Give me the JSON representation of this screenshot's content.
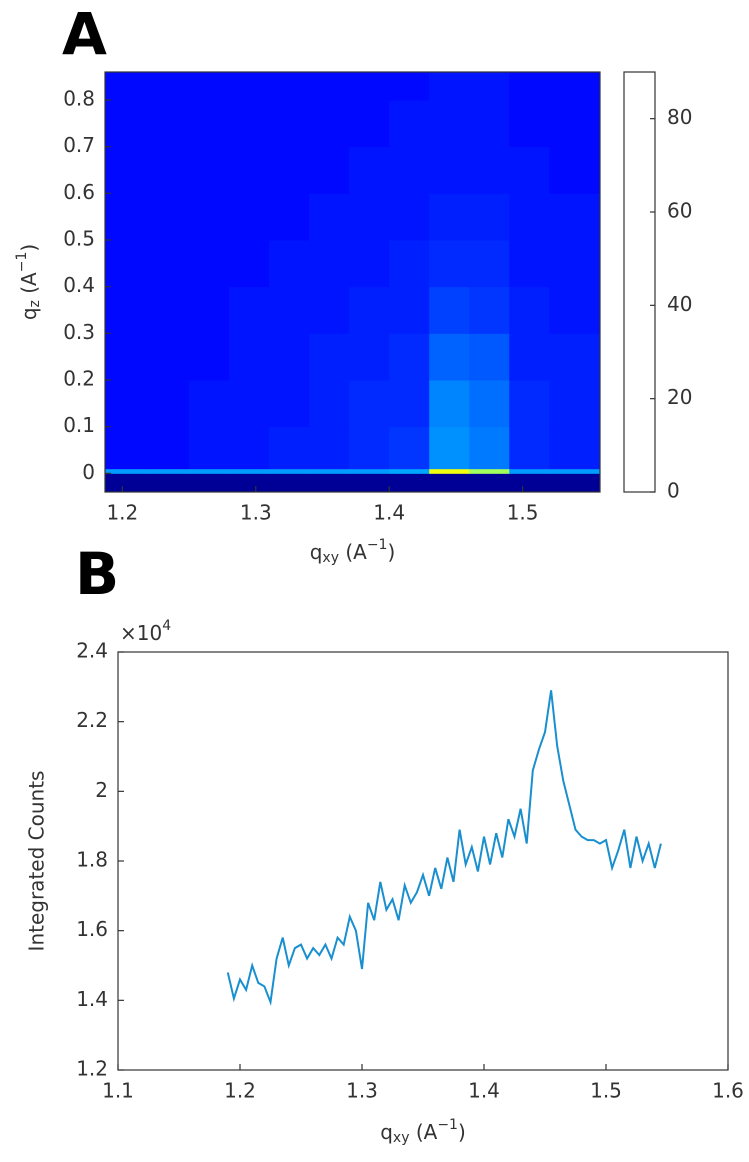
{
  "chart_data": [
    {
      "type": "heatmap",
      "title": "A",
      "xlabel": [
        "q",
        "xy",
        " (A",
        "−1",
        ")"
      ],
      "ylabel": [
        "q",
        "z",
        " (A",
        "−1",
        ")"
      ],
      "xlim": [
        1.187,
        1.558
      ],
      "xticks": [
        1.2,
        1.3,
        1.4,
        1.5
      ],
      "ylim": [
        -0.04,
        0.86
      ],
      "yticks": [
        0,
        0.1,
        0.2,
        0.3,
        0.4,
        0.5,
        0.6,
        0.7,
        0.8
      ],
      "clim": [
        0,
        90
      ],
      "cticks": [
        0,
        20,
        40,
        60,
        80
      ],
      "colormap": "jet",
      "x_bins": [
        1.187,
        1.22,
        1.25,
        1.28,
        1.31,
        1.34,
        1.37,
        1.4,
        1.43,
        1.46,
        1.49,
        1.52,
        1.558
      ],
      "y_bins": [
        -0.04,
        0,
        0.01,
        0.1,
        0.2,
        0.3,
        0.4,
        0.5,
        0.6,
        0.7,
        0.8,
        0.86
      ],
      "z": [
        [
          2,
          2,
          2,
          2,
          2,
          2,
          2,
          2,
          2,
          2,
          2,
          2
        ],
        [
          25,
          25,
          25,
          25,
          25,
          25,
          25,
          26,
          55,
          48,
          25,
          25
        ],
        [
          12,
          12,
          13,
          13,
          14,
          14,
          15,
          16,
          24,
          22,
          15,
          14
        ],
        [
          12,
          12,
          13,
          13,
          13,
          14,
          15,
          15,
          23,
          21,
          15,
          14
        ],
        [
          12,
          12,
          12,
          13,
          13,
          14,
          14,
          15,
          20,
          19,
          14,
          14
        ],
        [
          12,
          12,
          12,
          13,
          13,
          13,
          14,
          14,
          17,
          16,
          14,
          13
        ],
        [
          12,
          12,
          12,
          12,
          13,
          13,
          13,
          14,
          15,
          15,
          13,
          13
        ],
        [
          12,
          12,
          12,
          12,
          12,
          13,
          13,
          13,
          14,
          14,
          13,
          13
        ],
        [
          12,
          12,
          12,
          12,
          12,
          12,
          13,
          13,
          13,
          13,
          13,
          12
        ],
        [
          12,
          12,
          12,
          12,
          12,
          12,
          12,
          13,
          13,
          13,
          12,
          12
        ],
        [
          12,
          12,
          12,
          12,
          12,
          12,
          12,
          12,
          13,
          13,
          12,
          12
        ]
      ]
    },
    {
      "type": "line",
      "title": "B",
      "xlabel": [
        "q",
        "xy",
        " (A",
        "−1",
        ")"
      ],
      "ylabel": "Integrated Counts",
      "multiplier": [
        "×10",
        "4"
      ],
      "xlim": [
        1.1,
        1.6
      ],
      "xticks": [
        1.1,
        1.2,
        1.3,
        1.4,
        1.5,
        1.6
      ],
      "ylim": [
        12000,
        24000
      ],
      "yticks": [
        {
          "value": 12000,
          "label": "1.2"
        },
        {
          "value": 14000,
          "label": "1.4"
        },
        {
          "value": 16000,
          "label": "1.6"
        },
        {
          "value": 18000,
          "label": "1.8"
        },
        {
          "value": 20000,
          "label": "2"
        },
        {
          "value": 22000,
          "label": "2.2"
        },
        {
          "value": 24000,
          "label": "2.4"
        }
      ],
      "x": [
        1.19,
        1.195,
        1.2,
        1.205,
        1.21,
        1.215,
        1.22,
        1.225,
        1.23,
        1.235,
        1.24,
        1.245,
        1.25,
        1.255,
        1.26,
        1.265,
        1.27,
        1.275,
        1.28,
        1.285,
        1.29,
        1.295,
        1.3,
        1.305,
        1.31,
        1.315,
        1.32,
        1.325,
        1.33,
        1.335,
        1.34,
        1.345,
        1.35,
        1.355,
        1.36,
        1.365,
        1.37,
        1.375,
        1.38,
        1.385,
        1.39,
        1.395,
        1.4,
        1.405,
        1.41,
        1.415,
        1.42,
        1.425,
        1.43,
        1.435,
        1.44,
        1.445,
        1.45,
        1.455,
        1.46,
        1.465,
        1.47,
        1.475,
        1.48,
        1.485,
        1.49,
        1.495,
        1.5,
        1.505,
        1.51,
        1.515,
        1.52,
        1.525,
        1.53,
        1.535,
        1.54,
        1.545
      ],
      "series": [
        {
          "color": "#1a8fcf",
          "values": [
            14800,
            14050,
            14600,
            14300,
            15000,
            14500,
            14400,
            13950,
            15200,
            15800,
            15000,
            15500,
            15600,
            15200,
            15500,
            15300,
            15600,
            15200,
            15800,
            15600,
            16400,
            16000,
            14900,
            16800,
            16300,
            17400,
            16600,
            16900,
            16300,
            17300,
            16800,
            17100,
            17600,
            17000,
            17800,
            17200,
            18100,
            17400,
            18900,
            17900,
            18400,
            17700,
            18700,
            17900,
            18800,
            18100,
            19200,
            18700,
            19500,
            18500,
            20600,
            21200,
            21700,
            22900,
            21300,
            20300,
            19600,
            18900,
            18700,
            18600,
            18600,
            18500,
            18600,
            17800,
            18300,
            18900,
            17800,
            18700,
            18000,
            18500,
            17800,
            18500
          ]
        }
      ]
    }
  ]
}
